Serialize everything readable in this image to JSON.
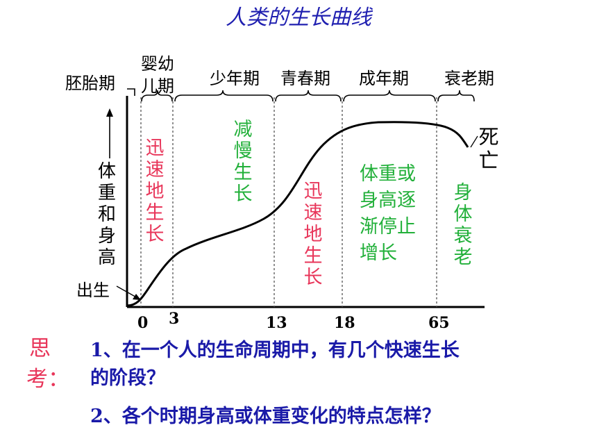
{
  "title": "人类的生长曲线",
  "phases": {
    "embryo": "胚胎期",
    "infant_line1": "婴幼",
    "infant_line2": "儿期",
    "juvenile": "少年期",
    "puberty": "青春期",
    "adult": "成年期",
    "senescence": "衰老期"
  },
  "y_axis_label": "体重和身高",
  "birth_label": "出生",
  "death_label": "死亡",
  "stage_notes": {
    "rapid1": "迅速地生长",
    "slow": "减慢生长",
    "rapid2": "迅速地生长",
    "stop": [
      "体重或",
      "身高逐",
      "渐停止",
      "增长"
    ],
    "decline": "身体衰老"
  },
  "ticks": [
    "0",
    "3",
    "13",
    "18",
    "65"
  ],
  "colors": {
    "title": "#1f1fb0",
    "rapid": "#e8365a",
    "slow": "#22b03a",
    "question": "#1a1aa8",
    "think": "#e8365a"
  },
  "think": {
    "line1": "思",
    "line2": "考："
  },
  "questions": {
    "q1_line1": "1、在一个人的生命周期中，有几个快速生长",
    "q1_line2": "的阶段？",
    "q2": "2、各个时期身高或体重变化的特点怎样？"
  }
}
